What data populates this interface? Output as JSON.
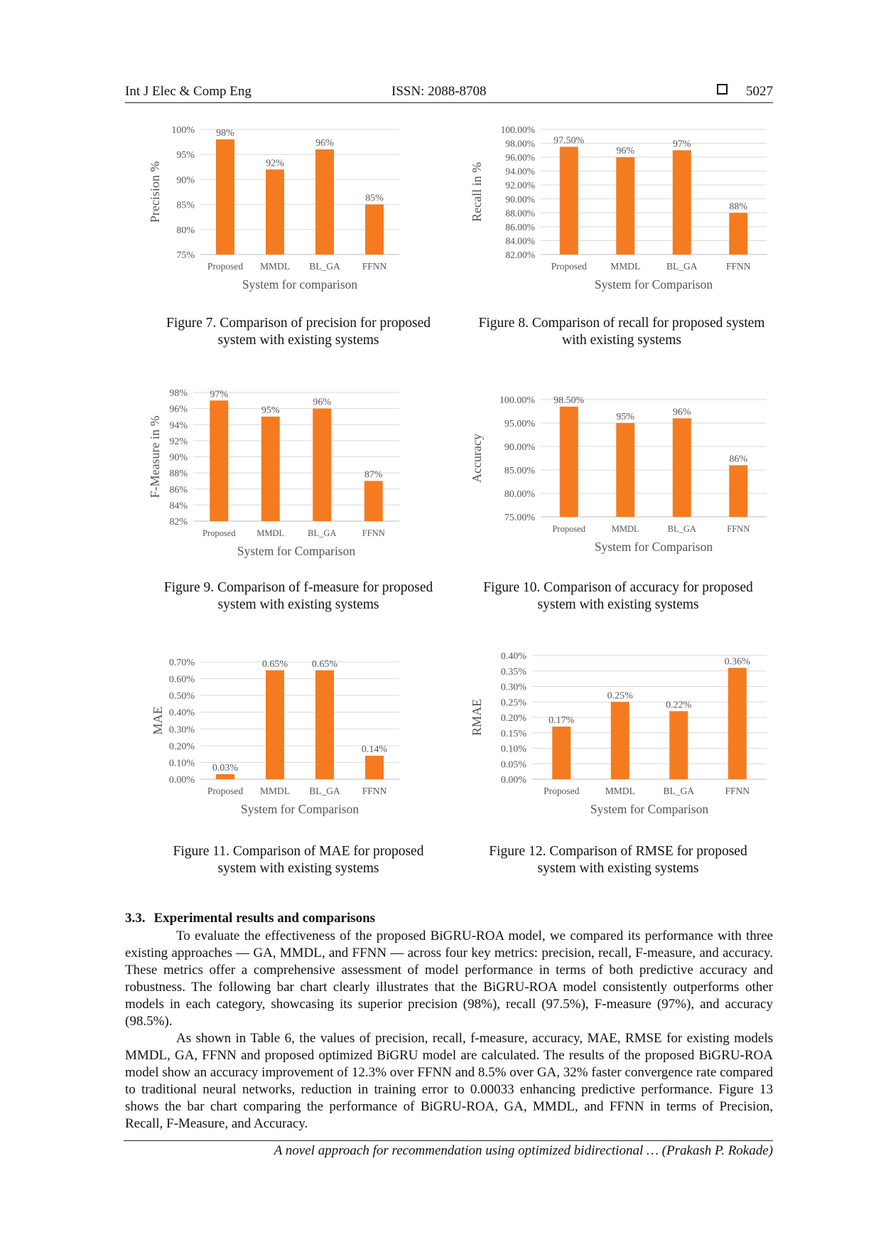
{
  "header": {
    "journal": "Int J Elec & Comp Eng",
    "issn": "ISSN: 2088-8708",
    "page": "5027"
  },
  "figures": [
    {
      "caption_line1": "Figure 7. Comparison of precision for proposed",
      "caption_line2": "system with existing systems"
    },
    {
      "caption_line1": "Figure 8. Comparison of recall for proposed system",
      "caption_line2": "with existing systems"
    },
    {
      "caption_line1": "Figure 9. Comparison of f-measure for proposed",
      "caption_line2": "system with existing systems"
    },
    {
      "caption_line1": "Figure 10. Comparison of accuracy for proposed",
      "caption_line2": "system with existing systems"
    },
    {
      "caption_line1": "Figure 11. Comparison of MAE for proposed",
      "caption_line2": "system with existing systems"
    },
    {
      "caption_line1": "Figure 12. Comparison of RMSE for proposed",
      "caption_line2": "system with existing systems"
    }
  ],
  "chart_data": [
    {
      "type": "bar",
      "title": "",
      "xlabel": "System for comparison",
      "ylabel": "Precision %",
      "categories": [
        "Proposed",
        "MMDL",
        "BL_GA",
        "FFNN"
      ],
      "values": [
        98,
        92,
        96,
        85
      ],
      "data_labels": [
        "98%",
        "92%",
        "96%",
        "85%"
      ],
      "ylim": [
        75,
        100
      ],
      "yticks": [
        75,
        80,
        85,
        90,
        95,
        100
      ],
      "ytick_labels": [
        "75%",
        "80%",
        "85%",
        "90%",
        "95%",
        "100%"
      ],
      "grid": true,
      "color": "#F47B20"
    },
    {
      "type": "bar",
      "title": "",
      "xlabel": "System for Comparison",
      "ylabel": "Recall in %",
      "categories": [
        "Proposed",
        "MMDL",
        "BL_GA",
        "FFNN"
      ],
      "values": [
        97.5,
        96,
        97,
        88
      ],
      "data_labels": [
        "97.50%",
        "96%",
        "97%",
        "88%"
      ],
      "ylim": [
        82,
        100
      ],
      "yticks": [
        82,
        84,
        86,
        88,
        90,
        92,
        94,
        96,
        98,
        100
      ],
      "ytick_labels": [
        "82.00%",
        "84.00%",
        "86.00%",
        "88.00%",
        "90.00%",
        "92.00%",
        "94.00%",
        "96.00%",
        "98.00%",
        "100.00%"
      ],
      "grid": true,
      "color": "#F47B20"
    },
    {
      "type": "bar",
      "title": "",
      "xlabel": "System for Comparison",
      "ylabel": "F-Measure in %",
      "categories": [
        "Proposed",
        "MMDL",
        "BL_GA",
        "FFNN"
      ],
      "values": [
        97,
        95,
        96,
        87
      ],
      "data_labels": [
        "97%",
        "95%",
        "96%",
        "87%"
      ],
      "ylim": [
        82,
        98
      ],
      "yticks": [
        82,
        84,
        86,
        88,
        90,
        92,
        94,
        96,
        98
      ],
      "ytick_labels": [
        "82%",
        "84%",
        "86%",
        "88%",
        "90%",
        "92%",
        "94%",
        "96%",
        "98%"
      ],
      "grid": true,
      "color": "#F47B20"
    },
    {
      "type": "bar",
      "title": "",
      "xlabel": "System for Comparison",
      "ylabel": "Accuracy",
      "categories": [
        "Proposed",
        "MMDL",
        "BL_GA",
        "FFNN"
      ],
      "values": [
        98.5,
        95,
        96,
        86
      ],
      "data_labels": [
        "98.50%",
        "95%",
        "96%",
        "86%"
      ],
      "ylim": [
        75,
        100
      ],
      "yticks": [
        75,
        80,
        85,
        90,
        95,
        100
      ],
      "ytick_labels": [
        "75.00%",
        "80.00%",
        "85.00%",
        "90.00%",
        "95.00%",
        "100.00%"
      ],
      "grid": true,
      "color": "#F47B20"
    },
    {
      "type": "bar",
      "title": "",
      "xlabel": "System for Comparison",
      "ylabel": "MAE",
      "categories": [
        "Proposed",
        "MMDL",
        "BL_GA",
        "FFNN"
      ],
      "values": [
        0.03,
        0.65,
        0.65,
        0.14
      ],
      "data_labels": [
        "0.03%",
        "0.65%",
        "0.65%",
        "0.14%"
      ],
      "ylim": [
        0,
        0.7
      ],
      "yticks": [
        0,
        0.1,
        0.2,
        0.3,
        0.4,
        0.5,
        0.6,
        0.7
      ],
      "ytick_labels": [
        "0.00%",
        "0.10%",
        "0.20%",
        "0.30%",
        "0.40%",
        "0.50%",
        "0.60%",
        "0.70%"
      ],
      "grid": true,
      "color": "#F47B20"
    },
    {
      "type": "bar",
      "title": "",
      "xlabel": "System for Comparison",
      "ylabel": "RMAE",
      "categories": [
        "Proposed",
        "MMDL",
        "BL_GA",
        "FFNN"
      ],
      "values": [
        0.17,
        0.25,
        0.22,
        0.36
      ],
      "data_labels": [
        "0.17%",
        "0.25%",
        "0.22%",
        "0.36%"
      ],
      "ylim": [
        0,
        0.4
      ],
      "yticks": [
        0,
        0.05,
        0.1,
        0.15,
        0.2,
        0.25,
        0.3,
        0.35,
        0.4
      ],
      "ytick_labels": [
        "0.00%",
        "0.05%",
        "0.10%",
        "0.15%",
        "0.20%",
        "0.25%",
        "0.30%",
        "0.35%",
        "0.40%"
      ],
      "grid": true,
      "color": "#F47B20"
    }
  ],
  "section": {
    "number": "3.3.",
    "title": "Experimental results and comparisons",
    "paragraph1": "To evaluate the effectiveness of the proposed BiGRU-ROA model, we compared its performance with three existing approaches — GA, MMDL, and FFNN — across four key metrics: precision, recall, F-measure, and accuracy. These metrics offer a comprehensive assessment of model performance in terms of both predictive accuracy and robustness. The following bar chart clearly illustrates that the BiGRU-ROA model consistently outperforms other models in each category, showcasing its superior precision (98%), recall (97.5%), F-measure (97%), and accuracy (98.5%).",
    "paragraph2": "As shown in Table 6, the values of precision, recall, f-measure, accuracy, MAE, RMSE for existing models MMDL, GA, FFNN and proposed optimized BiGRU model are calculated. The results of the proposed BiGRU-ROA model show an accuracy improvement of 12.3% over FFNN and 8.5% over GA, 32% faster convergence rate compared to traditional neural networks, reduction in training error to 0.00033 enhancing predictive performance. Figure 13 shows the bar chart comparing the performance of BiGRU-ROA, GA, MMDL, and FFNN in terms of Precision, Recall, F-Measure, and Accuracy."
  },
  "footer": {
    "running_title": "A novel approach for recommendation using optimized bidirectional … (Prakash P. Rokade)"
  }
}
